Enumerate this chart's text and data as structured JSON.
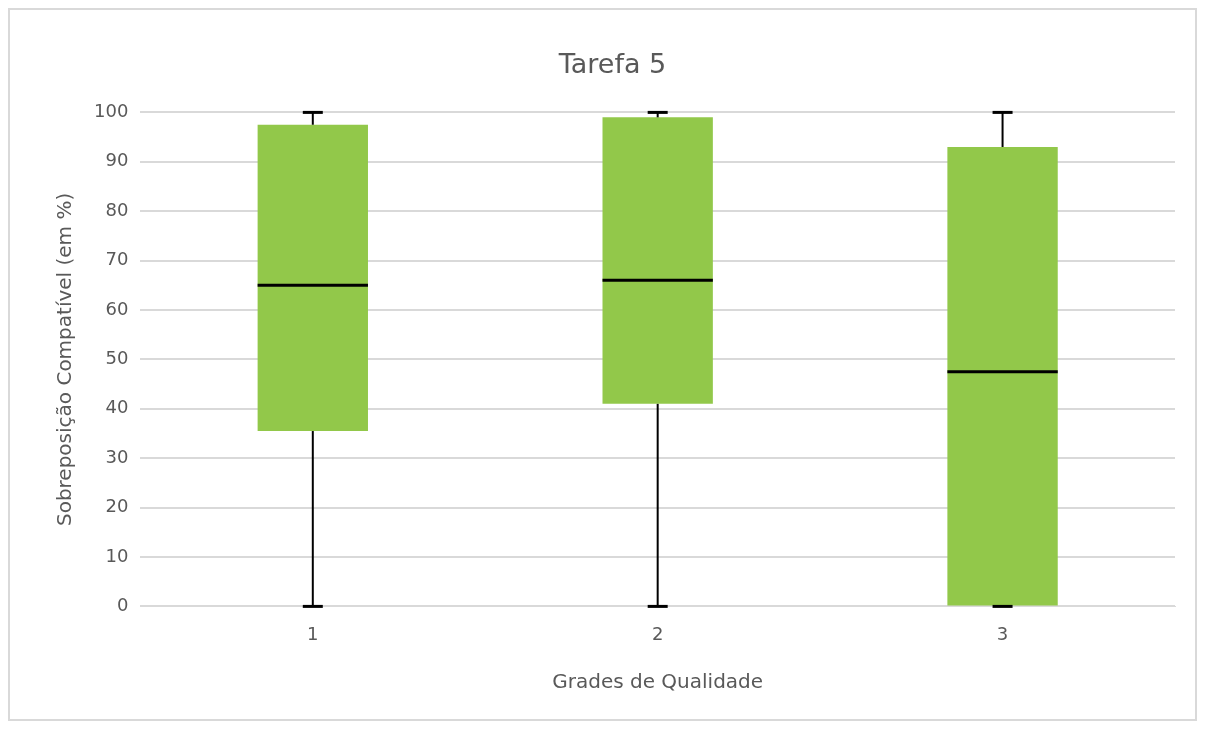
{
  "chart_data": {
    "type": "box",
    "title": "Tarefa 5",
    "xlabel": "Grades de Qualidade",
    "ylabel": "Sobreposição Compatível (em %)",
    "categories": [
      "1",
      "2",
      "3"
    ],
    "color": "#92c84a",
    "boxes": [
      {
        "low": 0,
        "q1": 35.5,
        "median": 65,
        "q3": 97.5,
        "high": 100
      },
      {
        "low": 0,
        "q1": 41,
        "median": 66,
        "q3": 99,
        "high": 100
      },
      {
        "low": 0,
        "q1": 0,
        "median": 47.5,
        "q3": 93,
        "high": 100
      }
    ],
    "ylim": [
      0,
      100
    ],
    "yticks": [
      0,
      10,
      20,
      30,
      40,
      50,
      60,
      70,
      80,
      90,
      100
    ],
    "grid": "y"
  }
}
